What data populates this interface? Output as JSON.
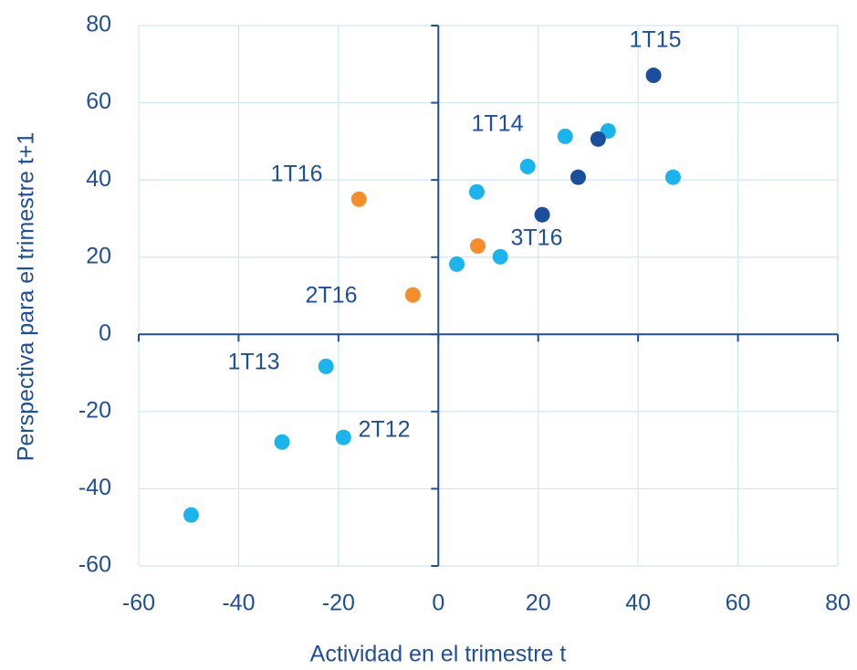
{
  "chart_data": {
    "type": "scatter",
    "x_label": "Actividad en el trimestre t",
    "y_label": "Perspectiva para el trimestre t+1",
    "xlim": [
      -60,
      80
    ],
    "ylim": [
      -60,
      80
    ],
    "xticks": [
      -60,
      -40,
      -20,
      0,
      20,
      40,
      60,
      80
    ],
    "yticks": [
      -60,
      -40,
      -20,
      0,
      20,
      40,
      60,
      80
    ],
    "grid": true,
    "series": [
      {
        "color": "#1cb4ec",
        "x": [
          -49.5,
          -31.3,
          -19,
          -22.5,
          3.7,
          12.4,
          7.7,
          17.9,
          25.4,
          34,
          47
        ],
        "values": [
          -46.8,
          -27.9,
          -26.7,
          -8.3,
          18.2,
          20.1,
          36.9,
          43.5,
          51.3,
          52.7,
          40.7
        ]
      },
      {
        "color": "#1a4f9c",
        "x": [
          20.8,
          28,
          32,
          43.1
        ],
        "values": [
          31,
          40.7,
          50.6,
          67.1
        ]
      },
      {
        "color": "#f58e2a",
        "x": [
          -15.9,
          -5.1,
          7.9
        ],
        "values": [
          35,
          10.2,
          22.9
        ]
      }
    ],
    "annotations": [
      "1T15",
      "1T14",
      "1T16",
      "3T16",
      "2T16",
      "1T13",
      "2T12"
    ]
  }
}
